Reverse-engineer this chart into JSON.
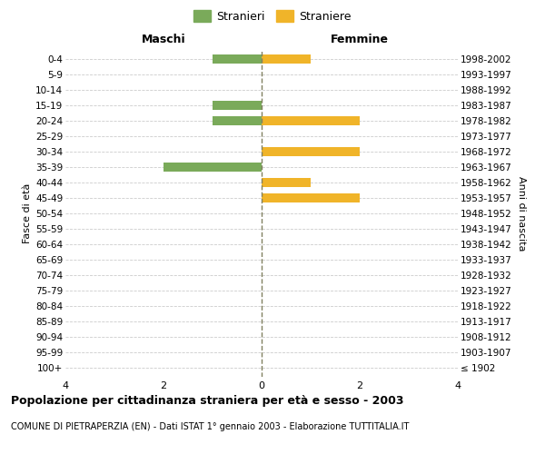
{
  "age_groups": [
    "100+",
    "95-99",
    "90-94",
    "85-89",
    "80-84",
    "75-79",
    "70-74",
    "65-69",
    "60-64",
    "55-59",
    "50-54",
    "45-49",
    "40-44",
    "35-39",
    "30-34",
    "25-29",
    "20-24",
    "15-19",
    "10-14",
    "5-9",
    "0-4"
  ],
  "birth_years": [
    "≤ 1902",
    "1903-1907",
    "1908-1912",
    "1913-1917",
    "1918-1922",
    "1923-1927",
    "1928-1932",
    "1933-1937",
    "1938-1942",
    "1943-1947",
    "1948-1952",
    "1953-1957",
    "1958-1962",
    "1963-1967",
    "1968-1972",
    "1973-1977",
    "1978-1982",
    "1983-1987",
    "1988-1992",
    "1993-1997",
    "1998-2002"
  ],
  "maschi": [
    0,
    0,
    0,
    0,
    0,
    0,
    0,
    0,
    0,
    0,
    0,
    0,
    0,
    2,
    0,
    0,
    1,
    1,
    0,
    0,
    1
  ],
  "femmine": [
    0,
    0,
    0,
    0,
    0,
    0,
    0,
    0,
    0,
    0,
    0,
    2,
    1,
    0,
    2,
    0,
    2,
    0,
    0,
    0,
    1
  ],
  "male_color": "#7aaa5a",
  "female_color": "#f0b429",
  "xlim": 4,
  "title": "Popolazione per cittadinanza straniera per età e sesso - 2003",
  "subtitle": "COMUNE DI PIETRAPERZIA (EN) - Dati ISTAT 1° gennaio 2003 - Elaborazione TUTTITALIA.IT",
  "legend_male": "Stranieri",
  "legend_female": "Straniere",
  "label_left": "Maschi",
  "label_right": "Femmine",
  "ylabel_left": "Fasce di età",
  "ylabel_right": "Anni di nascita",
  "background_color": "#ffffff",
  "grid_color": "#cccccc",
  "center_line_color": "#808060"
}
